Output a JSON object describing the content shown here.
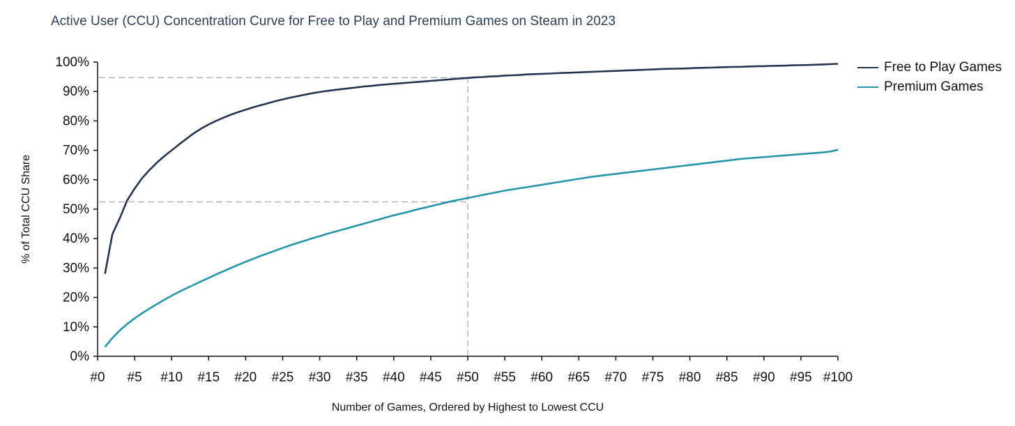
{
  "chart_data": {
    "type": "line",
    "title": "Active User (CCU) Concentration Curve for Free to Play and Premium Games on Steam in 2023",
    "xlabel": "Number of Games, Ordered by Highest to Lowest CCU",
    "ylabel": "% of Total CCU Share",
    "xlim": [
      0,
      100
    ],
    "ylim": [
      0,
      100
    ],
    "x_ticks": [
      "#0",
      "#5",
      "#10",
      "#15",
      "#20",
      "#25",
      "#30",
      "#35",
      "#40",
      "#45",
      "#50",
      "#55",
      "#60",
      "#65",
      "#70",
      "#75",
      "#80",
      "#85",
      "#90",
      "#95",
      "#100"
    ],
    "y_ticks": [
      "0%",
      "10%",
      "20%",
      "30%",
      "40%",
      "50%",
      "60%",
      "70%",
      "80%",
      "90%",
      "100%"
    ],
    "grid": false,
    "legend_position": "right",
    "reference_lines": [
      {
        "type": "horizontal",
        "y": 94.7,
        "x_from": 0,
        "x_to": 50
      },
      {
        "type": "horizontal",
        "y": 52.5,
        "x_from": 0,
        "x_to": 50
      },
      {
        "type": "vertical",
        "x": 50,
        "y_from": 0,
        "y_to": 94.7
      }
    ],
    "x": [
      1,
      2,
      3,
      4,
      5,
      6,
      7,
      8,
      9,
      10,
      11,
      12,
      13,
      14,
      15,
      16,
      17,
      18,
      19,
      20,
      21,
      22,
      23,
      24,
      25,
      26,
      27,
      28,
      29,
      30,
      31,
      32,
      33,
      34,
      35,
      36,
      37,
      38,
      39,
      40,
      41,
      42,
      43,
      44,
      45,
      46,
      47,
      48,
      49,
      50,
      51,
      52,
      53,
      54,
      55,
      56,
      57,
      58,
      59,
      60,
      61,
      62,
      63,
      64,
      65,
      66,
      67,
      68,
      69,
      70,
      71,
      72,
      73,
      74,
      75,
      76,
      77,
      78,
      79,
      80,
      81,
      82,
      83,
      84,
      85,
      86,
      87,
      88,
      89,
      90,
      91,
      92,
      93,
      94,
      95,
      96,
      97,
      98,
      99,
      100
    ],
    "series": [
      {
        "name": "Free to Play Games",
        "color": "#253551",
        "values": [
          28.0,
          41.5,
          47.0,
          53.0,
          57.0,
          60.5,
          63.3,
          65.8,
          68.0,
          70.0,
          72.0,
          73.9,
          75.8,
          77.4,
          78.8,
          80.0,
          81.1,
          82.1,
          83.0,
          83.8,
          84.6,
          85.3,
          86.0,
          86.7,
          87.3,
          87.9,
          88.4,
          88.9,
          89.4,
          89.8,
          90.2,
          90.5,
          90.8,
          91.1,
          91.4,
          91.7,
          91.9,
          92.2,
          92.4,
          92.6,
          92.8,
          93.0,
          93.2,
          93.4,
          93.6,
          93.8,
          94.0,
          94.2,
          94.4,
          94.6,
          94.8,
          94.9,
          95.1,
          95.2,
          95.4,
          95.5,
          95.6,
          95.8,
          95.9,
          96.0,
          96.1,
          96.2,
          96.3,
          96.4,
          96.5,
          96.6,
          96.7,
          96.8,
          96.9,
          97.0,
          97.1,
          97.2,
          97.3,
          97.4,
          97.5,
          97.6,
          97.7,
          97.75,
          97.8,
          97.9,
          98.0,
          98.05,
          98.1,
          98.2,
          98.3,
          98.35,
          98.4,
          98.5,
          98.55,
          98.6,
          98.7,
          98.75,
          98.8,
          98.9,
          98.95,
          99.0,
          99.1,
          99.2,
          99.3,
          99.4
        ]
      },
      {
        "name": "Premium Games",
        "color": "#2596a8",
        "values": [
          3.2,
          6.2,
          8.8,
          11.0,
          12.9,
          14.6,
          16.2,
          17.7,
          19.2,
          20.6,
          21.9,
          23.1,
          24.3,
          25.5,
          26.6,
          27.8,
          28.9,
          30.0,
          31.1,
          32.1,
          33.1,
          34.1,
          35.0,
          35.9,
          36.8,
          37.7,
          38.5,
          39.3,
          40.1,
          40.8,
          41.6,
          42.3,
          43.0,
          43.7,
          44.4,
          45.1,
          45.8,
          46.5,
          47.2,
          47.9,
          48.5,
          49.1,
          49.8,
          50.4,
          51.0,
          51.6,
          52.2,
          52.8,
          53.3,
          53.8,
          54.3,
          54.8,
          55.3,
          55.8,
          56.3,
          56.7,
          57.1,
          57.5,
          57.9,
          58.3,
          58.7,
          59.1,
          59.5,
          59.9,
          60.3,
          60.7,
          61.1,
          61.4,
          61.7,
          62.0,
          62.3,
          62.6,
          62.9,
          63.2,
          63.5,
          63.8,
          64.1,
          64.4,
          64.7,
          65.0,
          65.3,
          65.6,
          65.9,
          66.2,
          66.5,
          66.8,
          67.1,
          67.3,
          67.5,
          67.7,
          67.9,
          68.1,
          68.3,
          68.5,
          68.7,
          68.9,
          69.1,
          69.3,
          69.6,
          70.2
        ]
      }
    ]
  },
  "legend": {
    "items": [
      {
        "label": "Free to Play Games",
        "color": "#253551"
      },
      {
        "label": "Premium Games",
        "color": "#2596a8"
      }
    ]
  }
}
